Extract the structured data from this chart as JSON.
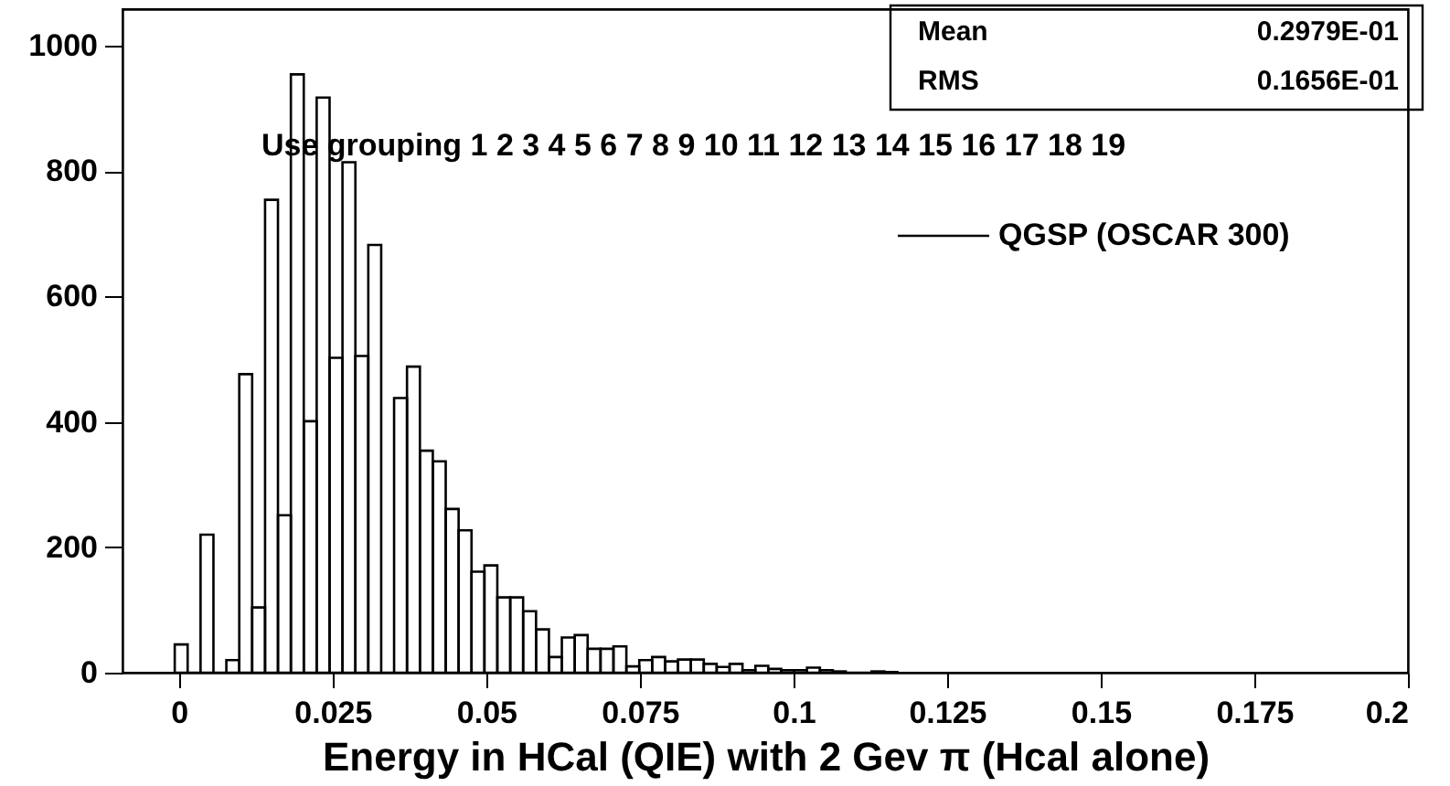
{
  "chart_data": {
    "type": "histogram",
    "xlabel": "Energy in HCal (QIE) with 2 Gev π (Hcal alone)",
    "bins": [
      -0.0007,
      0.0014,
      0.0035,
      0.0056,
      0.0077,
      0.0098,
      0.0119,
      0.014,
      0.0161,
      0.0182,
      0.0203,
      0.0224,
      0.0245,
      0.0266,
      0.0287,
      0.0308,
      0.0329,
      0.035,
      0.0371,
      0.0392,
      0.0413,
      0.0434,
      0.0455,
      0.0476,
      0.0497,
      0.0518,
      0.0539,
      0.056,
      0.0581,
      0.0602,
      0.0623,
      0.0644,
      0.0665,
      0.0686,
      0.0707,
      0.0728,
      0.0749,
      0.077,
      0.0791,
      0.0812,
      0.0833,
      0.0854,
      0.0875,
      0.0896,
      0.0917,
      0.0938,
      0.0959,
      0.098,
      0.1001,
      0.1022,
      0.1043,
      0.1064,
      0.1085,
      0.1106,
      0.1127,
      0.1148,
      0.1169
    ],
    "series": [
      {
        "name": "QGSP (OSCAR 300)",
        "color": "#000000",
        "values": [
          45,
          0,
          220,
          0,
          20,
          476,
          104,
          754,
          251,
          954,
          401,
          917,
          502,
          814,
          505,
          682,
          0,
          438,
          488,
          354,
          337,
          261,
          227,
          161,
          171,
          120,
          120,
          98,
          69,
          25,
          56,
          60,
          38,
          38,
          42,
          10,
          20,
          25,
          18,
          21,
          21,
          14,
          9,
          14,
          4,
          11,
          6,
          4,
          4,
          8,
          4,
          2,
          0,
          0,
          2,
          1
        ]
      }
    ],
    "xlim": [
      -0.0092,
      0.2
    ],
    "xticks": [
      0,
      0.025,
      0.05,
      0.075,
      0.1,
      0.125,
      0.15,
      0.175,
      0.2
    ],
    "ylim": [
      0,
      1058
    ],
    "yticks": [
      0,
      200,
      400,
      600,
      800,
      1000
    ],
    "legend": "top right",
    "grid": false,
    "annotations": [
      "Mean",
      "0.2979E-01",
      "RMS",
      "0.1656E-01",
      "Use grouping 1 2 3 4 5 6 7 8 9 10 11 12 13 14 15 16 17 18 19"
    ]
  }
}
